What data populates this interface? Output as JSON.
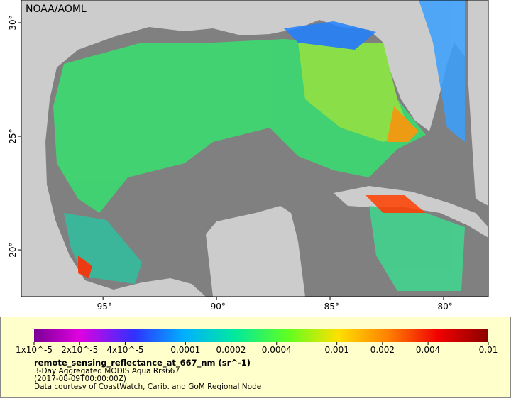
{
  "map": {
    "credit": "NOAA/AOML",
    "xlim": [
      -98.6,
      -78.03
    ],
    "ylim": [
      17.94,
      31
    ],
    "xticks": [
      {
        "value": -95,
        "label": "-95°"
      },
      {
        "value": -90,
        "label": "-90°"
      },
      {
        "value": -85,
        "label": "-85°"
      },
      {
        "value": -80,
        "label": "-80°"
      }
    ],
    "yticks": [
      {
        "value": 30,
        "label": "30°"
      },
      {
        "value": 25,
        "label": "25°"
      },
      {
        "value": 20,
        "label": "20°"
      }
    ]
  },
  "colorbar": {
    "range": [
      1e-05,
      0.01
    ],
    "log": true,
    "ticks": [
      {
        "value": 1e-05,
        "label": "1x10^-5"
      },
      {
        "value": 2e-05,
        "label": "2x10^-5"
      },
      {
        "value": 4e-05,
        "label": "4x10^-5"
      },
      0.0001,
      0.0002,
      0.0004,
      0.001,
      0.002,
      0.004,
      0.01
    ]
  },
  "legend": {
    "title": "remote_sensing_reflectance_at_667_nm (sr^-1)",
    "lines": [
      "3-Day Aggregated MODIS Aqua Rrs667",
      "(2017-08-09T00:00:00Z)",
      "Data courtesy of CoastWatch, Carib. and GoM Regional Node"
    ]
  }
}
